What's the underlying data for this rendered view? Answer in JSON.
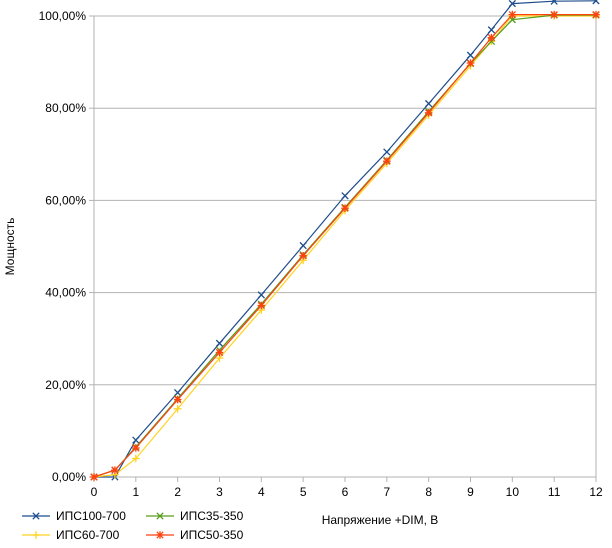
{
  "chart_data": {
    "type": "line",
    "title": "",
    "xlabel": "Напряжение +DIM, В",
    "ylabel": "Мощность",
    "xlim": [
      0,
      12
    ],
    "ylim": [
      0,
      100
    ],
    "x_ticks": [
      0,
      1,
      2,
      3,
      4,
      5,
      6,
      7,
      8,
      9,
      10,
      11,
      12
    ],
    "x_tick_labels": [
      "0",
      "1",
      "2",
      "3",
      "4",
      "5",
      "6",
      "7",
      "8",
      "9",
      "10",
      "11",
      "12"
    ],
    "y_ticks": [
      0,
      20,
      40,
      60,
      80,
      100
    ],
    "y_tick_labels": [
      "0,00%",
      "20,00%",
      "40,00%",
      "60,00%",
      "80,00%",
      "100,00%"
    ],
    "grid": "horizontal",
    "legend_position": "bottom-left",
    "series": [
      {
        "name": "ИПС100-700",
        "color": "#1f4e8c",
        "marker": "x",
        "x": [
          0,
          0.5,
          1,
          2,
          3,
          4,
          5,
          6,
          7,
          8,
          9,
          9.5,
          10,
          11,
          12
        ],
        "y": [
          0,
          0,
          8,
          18.3,
          29,
          39.5,
          50.2,
          61,
          70.5,
          81,
          91.5,
          97,
          102.7,
          103.2,
          103.3
        ]
      },
      {
        "name": "ИПС60-700",
        "color": "#ffd320",
        "marker": "plus",
        "x": [
          0,
          0.5,
          1,
          2,
          3,
          4,
          5,
          6,
          7,
          8,
          9,
          9.5,
          10,
          11,
          12
        ],
        "y": [
          0,
          0.5,
          4,
          14.8,
          25.8,
          36.2,
          47,
          57.8,
          68,
          78.5,
          89.2,
          94.5,
          100,
          100,
          100
        ]
      },
      {
        "name": "ИПС35-350",
        "color": "#579d1c",
        "marker": "x",
        "x": [
          0,
          0.5,
          1,
          2,
          3,
          4,
          5,
          6,
          7,
          8,
          9,
          9.5,
          10,
          11,
          12
        ],
        "y": [
          0,
          1.5,
          6.5,
          17,
          27.5,
          37.5,
          48.2,
          58.5,
          68.7,
          79.3,
          89.7,
          94.5,
          99.2,
          100.2,
          100.2
        ]
      },
      {
        "name": "ИПС50-350",
        "color": "#ff420e",
        "marker": "star",
        "x": [
          0,
          0.5,
          1,
          2,
          3,
          4,
          5,
          6,
          7,
          8,
          9,
          9.5,
          10,
          11,
          12
        ],
        "y": [
          0,
          1.5,
          6.3,
          16.8,
          27,
          37.2,
          48,
          58.3,
          68.5,
          79,
          89.8,
          95.3,
          100.3,
          100.3,
          100.3
        ]
      }
    ]
  }
}
